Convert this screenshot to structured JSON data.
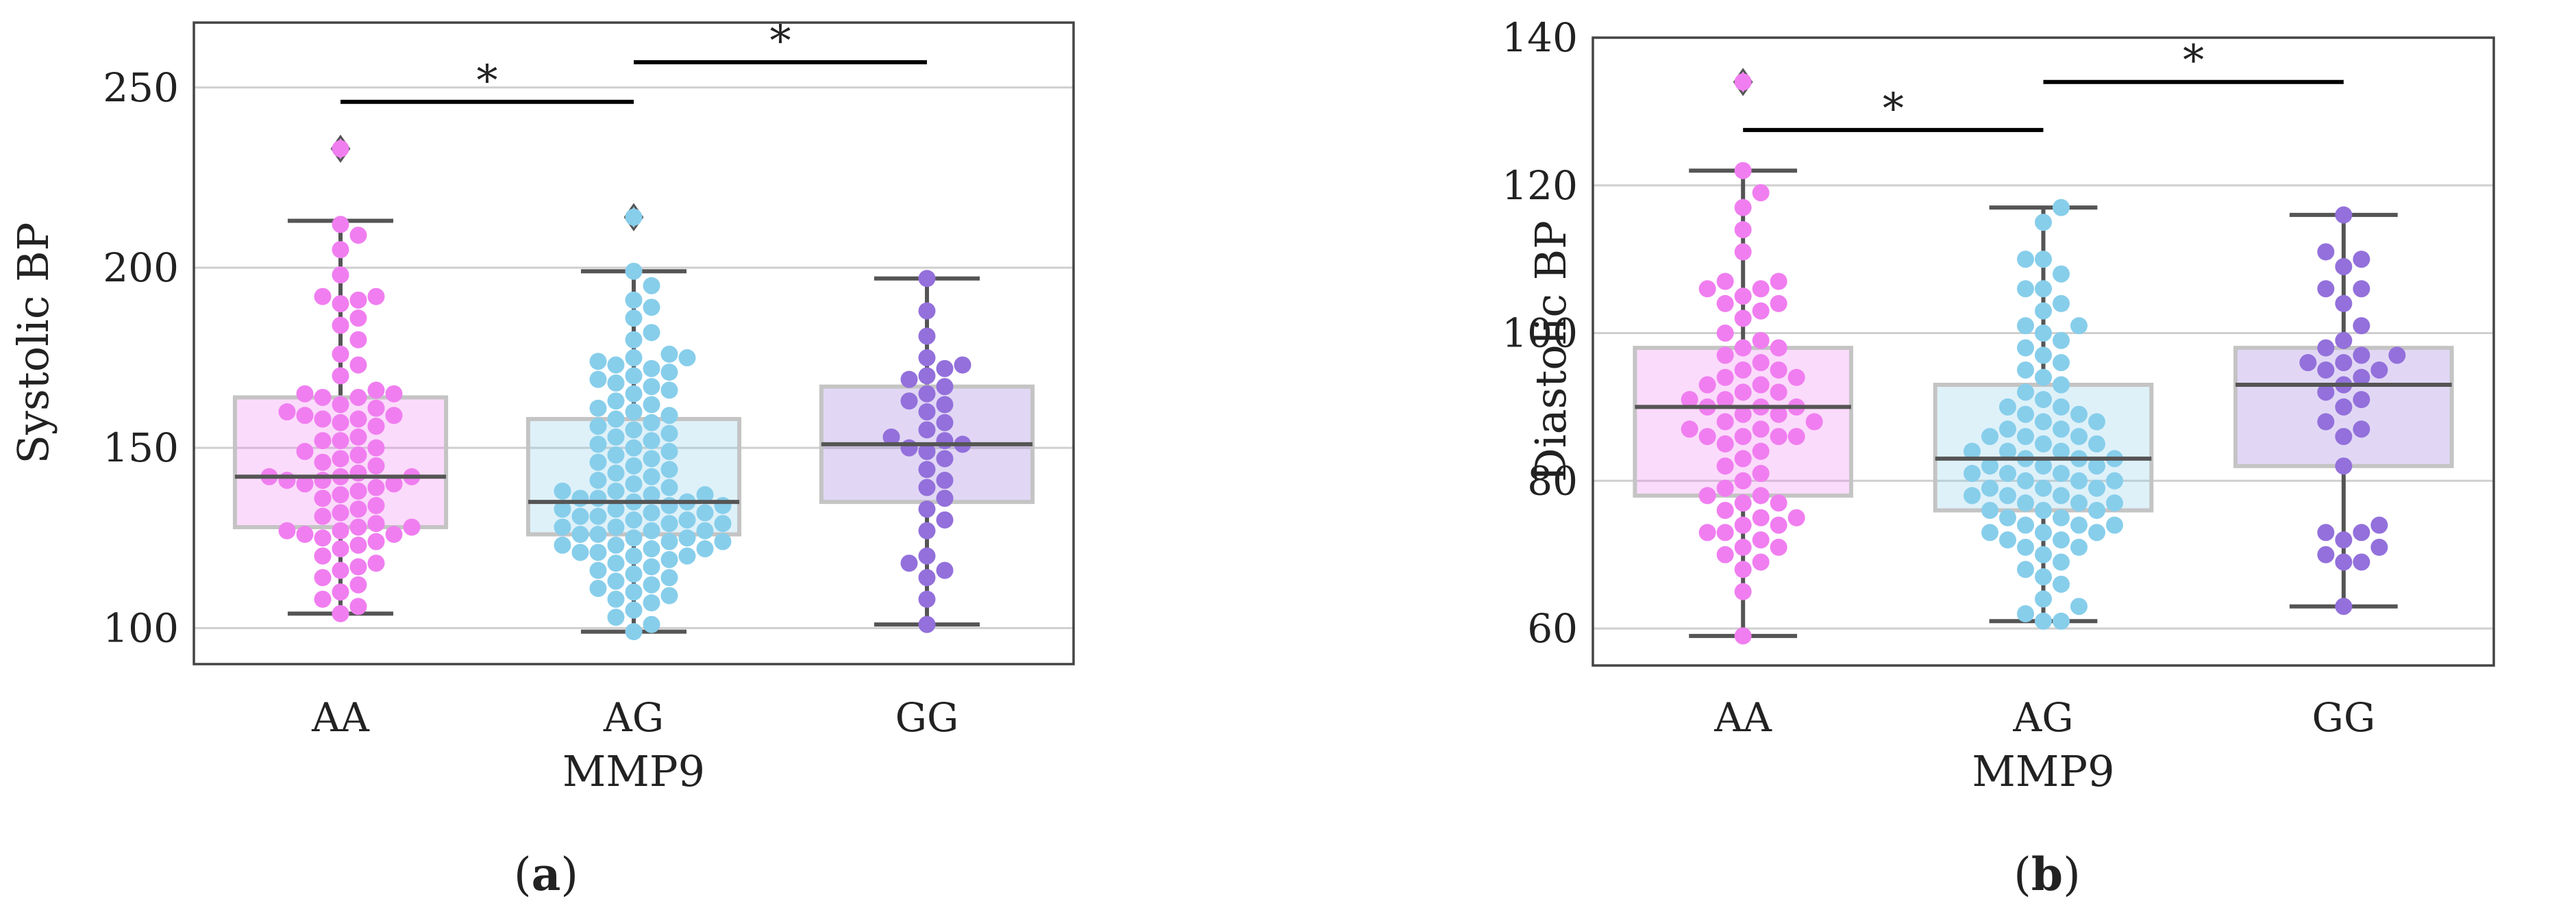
{
  "chart_data": [
    {
      "type": "box",
      "panel_label": {
        "open": "(",
        "letter": "a",
        "close": ")"
      },
      "title": "",
      "xlabel": "MMP9",
      "ylabel": "Systolic BP",
      "ylim": [
        90,
        268
      ],
      "yticks": [
        100,
        150,
        200,
        250
      ],
      "grid": true,
      "categories": [
        "AA",
        "AG",
        "GG"
      ],
      "colors": [
        "#f07ef0",
        "#87ceeb",
        "#9370db"
      ],
      "boxes": [
        {
          "category": "AA",
          "min": 104,
          "q1": 128,
          "median": 142,
          "q3": 164,
          "max": 213,
          "outliers": [
            233
          ]
        },
        {
          "category": "AG",
          "min": 99,
          "q1": 126,
          "median": 135,
          "q3": 158,
          "max": 199,
          "outliers": [
            214
          ]
        },
        {
          "category": "GG",
          "min": 101,
          "q1": 135,
          "median": 151,
          "q3": 167,
          "max": 197,
          "outliers": []
        }
      ],
      "points": {
        "AA": [
          233,
          212,
          209,
          205,
          198,
          192,
          192,
          191,
          190,
          186,
          184,
          180,
          176,
          173,
          170,
          166,
          165,
          165,
          164,
          164,
          162,
          161,
          160,
          159,
          159,
          158,
          158,
          157,
          156,
          153,
          152,
          152,
          150,
          149,
          148,
          147,
          146,
          145,
          143,
          142,
          142,
          142,
          141,
          141,
          140,
          140,
          139,
          138,
          137,
          136,
          134,
          133,
          132,
          131,
          129,
          128,
          128,
          127,
          127,
          126,
          126,
          125,
          124,
          123,
          122,
          120,
          118,
          117,
          116,
          114,
          112,
          110,
          108,
          106,
          104
        ],
        "AG": [
          214,
          199,
          195,
          191,
          189,
          186,
          182,
          180,
          176,
          175,
          175,
          174,
          173,
          172,
          171,
          170,
          169,
          168,
          167,
          166,
          165,
          163,
          162,
          161,
          160,
          159,
          158,
          157,
          156,
          155,
          154,
          153,
          152,
          151,
          150,
          149,
          148,
          147,
          146,
          145,
          144,
          143,
          142,
          141,
          140,
          139,
          138,
          138,
          137,
          137,
          136,
          136,
          135,
          135,
          134,
          134,
          133,
          133,
          132,
          132,
          131,
          131,
          130,
          130,
          129,
          129,
          128,
          128,
          127,
          127,
          126,
          126,
          125,
          125,
          124,
          124,
          123,
          123,
          122,
          122,
          121,
          121,
          120,
          120,
          119,
          118,
          117,
          116,
          115,
          114,
          113,
          112,
          111,
          110,
          109,
          108,
          107,
          105,
          103,
          101,
          99
        ],
        "GG": [
          197,
          188,
          181,
          175,
          173,
          172,
          170,
          169,
          167,
          165,
          163,
          162,
          160,
          157,
          155,
          153,
          152,
          151,
          150,
          149,
          147,
          144,
          141,
          139,
          136,
          133,
          130,
          127,
          120,
          118,
          116,
          114,
          108,
          101
        ]
      },
      "significance": [
        {
          "from": "AA",
          "to": "AG",
          "y": 246,
          "label": "*"
        },
        {
          "from": "AG",
          "to": "GG",
          "y": 257,
          "label": "*"
        }
      ]
    },
    {
      "type": "box",
      "panel_label": {
        "open": "(",
        "letter": "b",
        "close": ")"
      },
      "title": "",
      "xlabel": "MMP9",
      "ylabel": "Diastolic BP",
      "ylim": [
        55,
        140
      ],
      "yticks": [
        60,
        80,
        100,
        120,
        140
      ],
      "grid": true,
      "categories": [
        "AA",
        "AG",
        "GG"
      ],
      "colors": [
        "#f07ef0",
        "#87ceeb",
        "#9370db"
      ],
      "boxes": [
        {
          "category": "AA",
          "min": 59,
          "q1": 78,
          "median": 90,
          "q3": 98,
          "max": 122,
          "outliers": [
            134
          ]
        },
        {
          "category": "AG",
          "min": 61,
          "q1": 76,
          "median": 83,
          "q3": 93,
          "max": 117,
          "outliers": []
        },
        {
          "category": "GG",
          "min": 63,
          "q1": 82,
          "median": 93,
          "q3": 98,
          "max": 116,
          "outliers": []
        }
      ],
      "points": {
        "AA": [
          134,
          122,
          119,
          117,
          114,
          111,
          107,
          107,
          106,
          106,
          105,
          104,
          104,
          103,
          102,
          100,
          99,
          98,
          98,
          97,
          96,
          95,
          95,
          94,
          94,
          93,
          93,
          92,
          92,
          91,
          91,
          90,
          90,
          90,
          89,
          89,
          88,
          88,
          87,
          87,
          86,
          86,
          86,
          86,
          85,
          84,
          83,
          82,
          81,
          80,
          79,
          78,
          78,
          77,
          77,
          76,
          75,
          75,
          74,
          74,
          73,
          73,
          72,
          71,
          71,
          70,
          69,
          68,
          65,
          59
        ],
        "AG": [
          117,
          115,
          110,
          110,
          108,
          106,
          106,
          104,
          103,
          101,
          101,
          100,
          99,
          98,
          97,
          96,
          95,
          94,
          93,
          92,
          91,
          90,
          90,
          89,
          89,
          88,
          88,
          87,
          87,
          86,
          86,
          86,
          85,
          85,
          84,
          84,
          84,
          83,
          83,
          83,
          82,
          82,
          82,
          81,
          81,
          81,
          80,
          80,
          80,
          79,
          79,
          79,
          78,
          78,
          78,
          77,
          77,
          77,
          76,
          76,
          76,
          75,
          75,
          74,
          74,
          74,
          73,
          73,
          73,
          72,
          72,
          71,
          71,
          70,
          69,
          68,
          67,
          66,
          64,
          63,
          62,
          61,
          61
        ],
        "GG": [
          116,
          111,
          110,
          109,
          106,
          106,
          104,
          101,
          99,
          98,
          97,
          97,
          96,
          96,
          95,
          95,
          94,
          93,
          92,
          91,
          90,
          88,
          87,
          86,
          82,
          74,
          73,
          73,
          72,
          71,
          70,
          69,
          69,
          63
        ]
      },
      "significance": [
        {
          "from": "AA",
          "to": "AG",
          "y": 127.5,
          "label": "*"
        },
        {
          "from": "AG",
          "to": "GG",
          "y": 134,
          "label": "*"
        }
      ]
    }
  ]
}
